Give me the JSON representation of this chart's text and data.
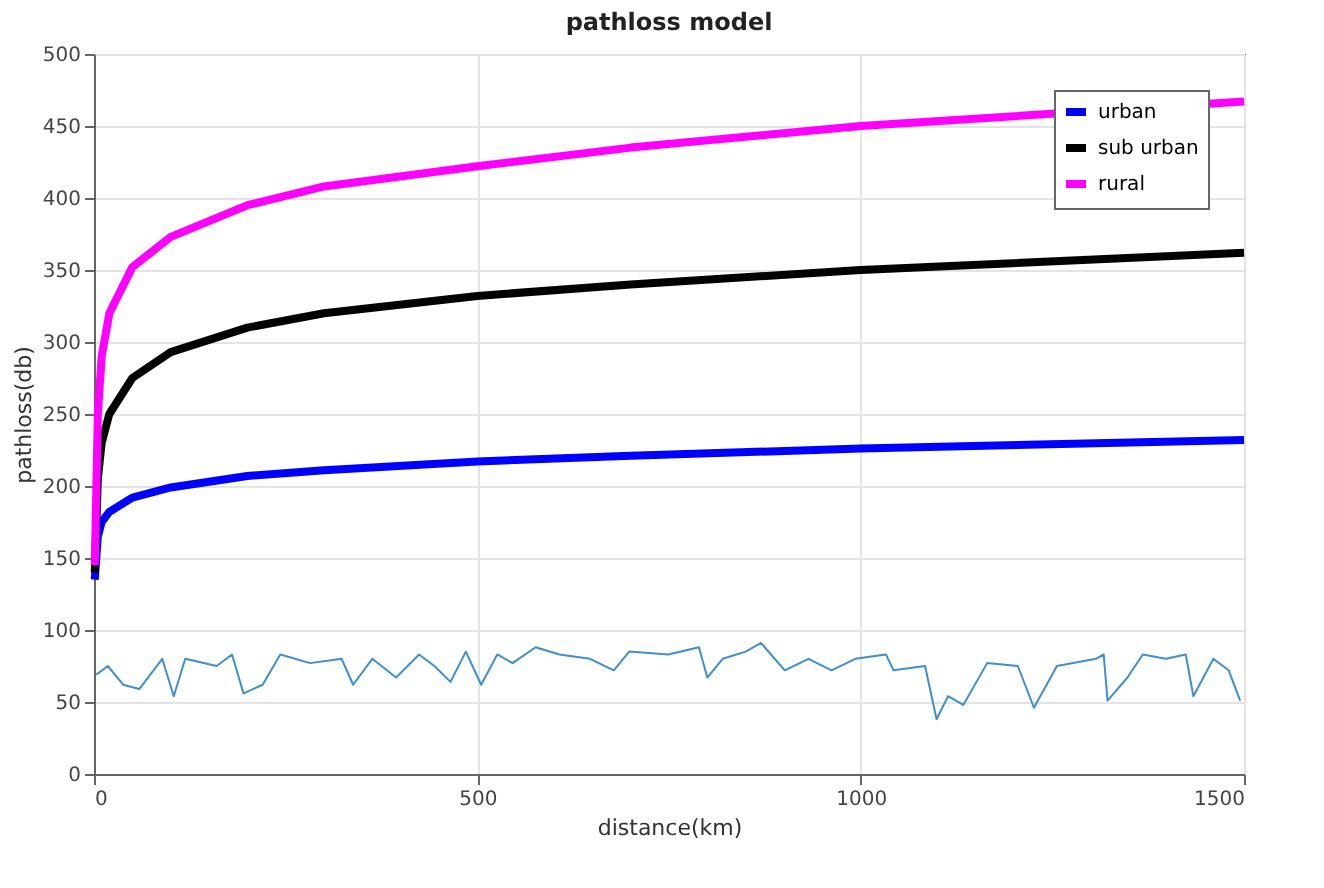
{
  "chart_data": {
    "type": "line",
    "title": "pathloss model",
    "xlabel": "distance(km)",
    "ylabel": "pathloss(db)",
    "xlim": [
      0,
      1500
    ],
    "xticks": [
      0,
      500,
      1000,
      1500
    ],
    "ylim": [
      0,
      500
    ],
    "yticks": [
      0,
      50,
      100,
      150,
      200,
      250,
      300,
      350,
      400,
      450,
      500
    ],
    "grid": true,
    "legend": "top right",
    "marker": "none",
    "line_style": "solid",
    "series": [
      {
        "name": "urban",
        "color": "#0000ff",
        "x": [
          1,
          5,
          10,
          20,
          50,
          100,
          200,
          300,
          500,
          700,
          1000,
          1500
        ],
        "values": [
          135,
          165,
          175,
          182,
          192,
          199,
          207,
          211,
          217,
          221,
          226,
          232
        ]
      },
      {
        "name": "sub urban",
        "color": "#000000",
        "x": [
          1,
          5,
          10,
          20,
          50,
          100,
          200,
          300,
          500,
          700,
          1000,
          1500
        ],
        "values": [
          140,
          205,
          230,
          250,
          275,
          293,
          310,
          320,
          332,
          340,
          350,
          362
        ]
      },
      {
        "name": "rural",
        "color": "#ff00ff",
        "x": [
          1,
          5,
          10,
          20,
          50,
          100,
          200,
          300,
          500,
          700,
          1000,
          1500
        ],
        "values": [
          145,
          250,
          290,
          320,
          352,
          373,
          395,
          408,
          422,
          435,
          450,
          467
        ]
      },
      {
        "color": "#3d8fd1",
        "x": [
          3,
          18,
          38,
          59,
          89,
          104,
          119,
          160,
          180,
          195,
          220,
          243,
          282,
          323,
          338,
          363,
          394,
          424,
          444,
          465,
          485,
          505,
          526,
          546,
          576,
          607,
          647,
          678,
          698,
          749,
          789,
          800,
          820,
          850,
          870,
          901,
          932,
          962,
          993,
          1033,
          1043,
          1084,
          1099,
          1114,
          1134,
          1165,
          1205,
          1226,
          1256,
          1307,
          1317,
          1322,
          1348,
          1368,
          1398,
          1424,
          1434,
          1460,
          1480,
          1495
        ],
        "values": [
          69,
          75,
          62,
          59,
          80,
          54,
          80,
          75,
          83,
          56,
          62,
          83,
          77,
          80,
          62,
          80,
          67,
          83,
          75,
          64,
          85,
          62,
          83,
          77,
          88,
          83,
          80,
          72,
          85,
          83,
          88,
          67,
          80,
          85,
          91,
          72,
          80,
          72,
          80,
          83,
          72,
          75,
          38,
          54,
          48,
          77,
          75,
          46,
          75,
          80,
          83,
          51,
          67,
          83,
          80,
          83,
          54,
          80,
          72,
          51
        ]
      }
    ]
  }
}
